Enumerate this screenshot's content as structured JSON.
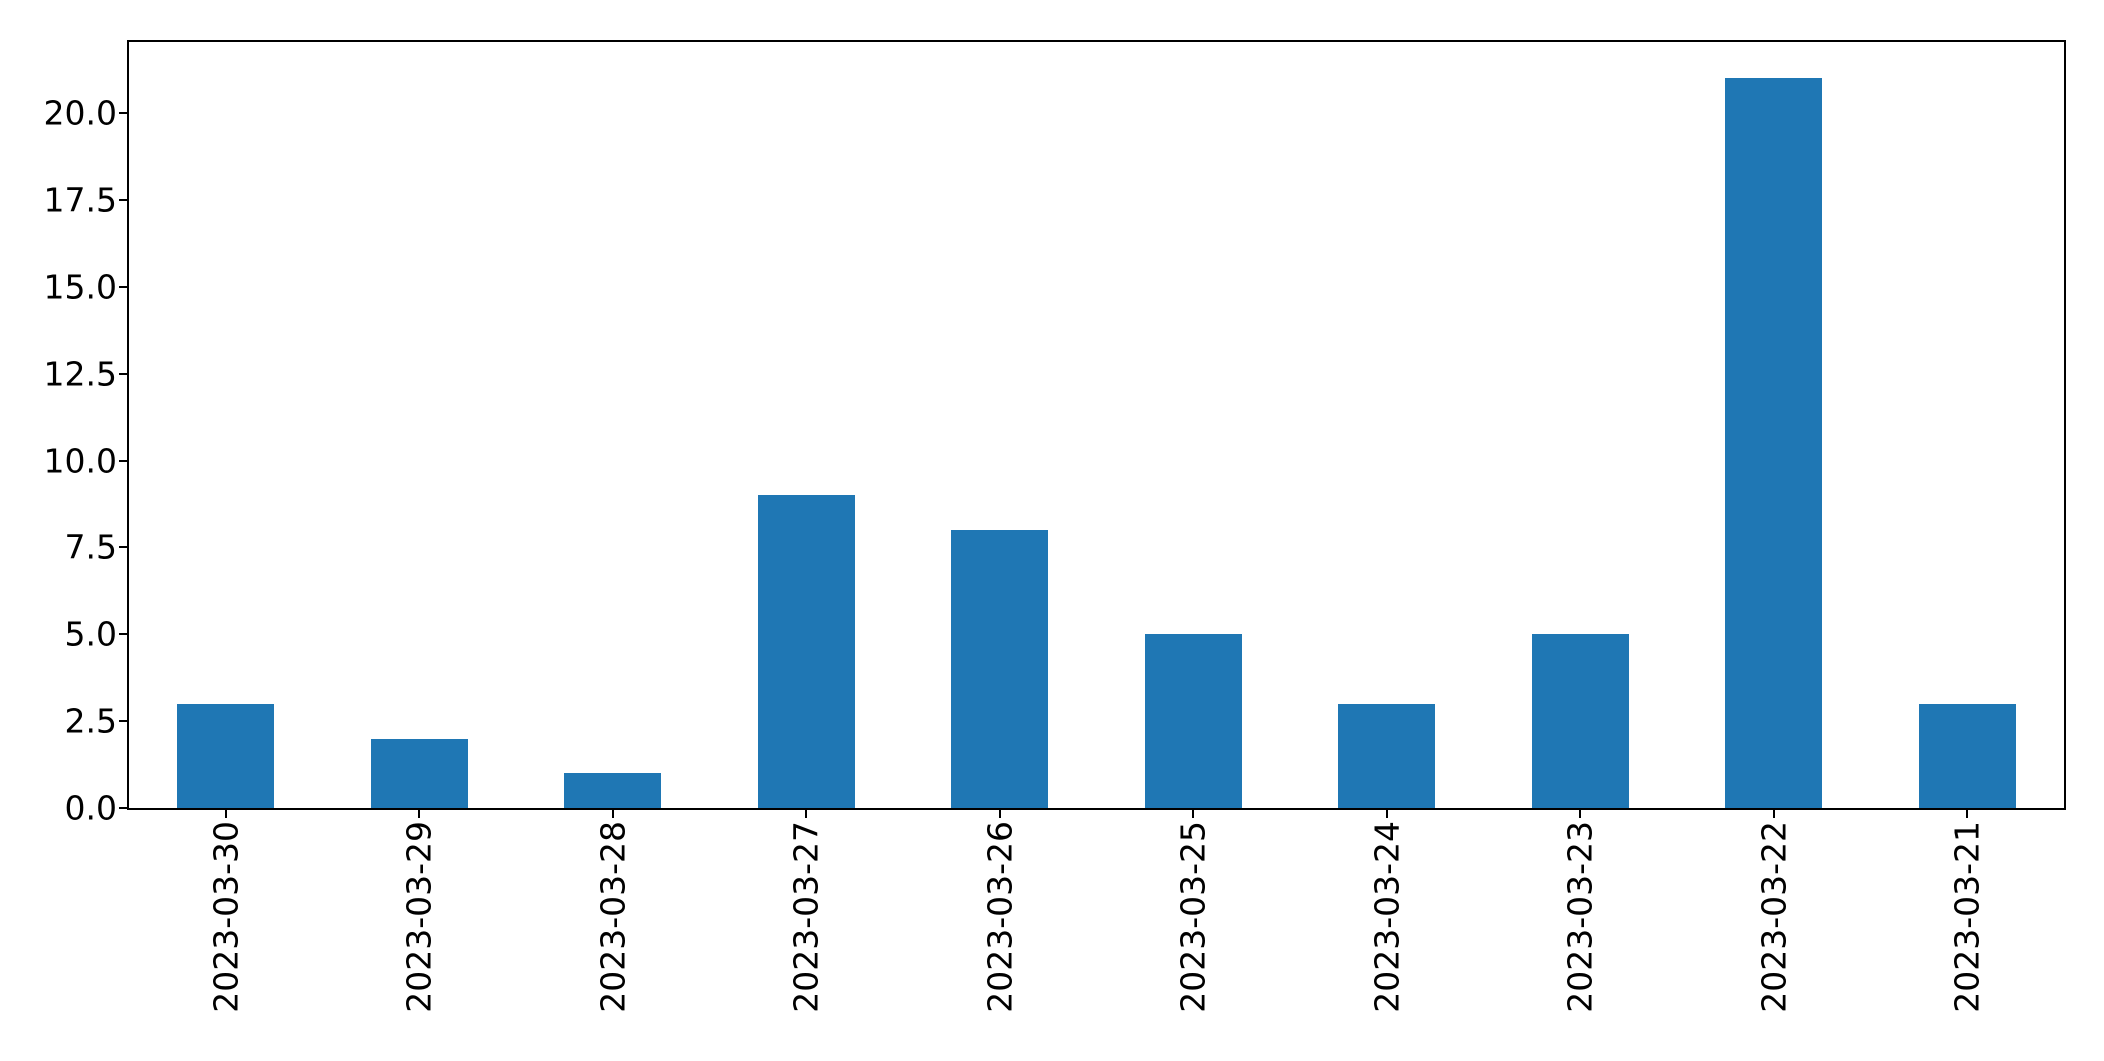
{
  "chart_data": {
    "type": "bar",
    "title": "",
    "xlabel": "",
    "ylabel": "",
    "categories": [
      "2023-03-30",
      "2023-03-29",
      "2023-03-28",
      "2023-03-27",
      "2023-03-26",
      "2023-03-25",
      "2023-03-24",
      "2023-03-23",
      "2023-03-22",
      "2023-03-21"
    ],
    "values": [
      3,
      2,
      1,
      9,
      8,
      5,
      3,
      5,
      21,
      3
    ],
    "yticks": [
      "0.0",
      "2.5",
      "5.0",
      "7.5",
      "10.0",
      "12.5",
      "15.0",
      "17.5",
      "20.0"
    ],
    "ylim": [
      0,
      22.05
    ],
    "bar_color": "#1f77b4",
    "bar_width_fraction": 0.5,
    "x_tick_rotation_deg": 90,
    "grid": false,
    "legend_position": "none"
  }
}
